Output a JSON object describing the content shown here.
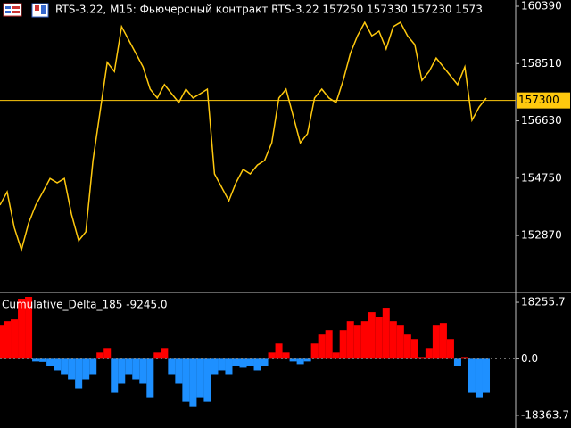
{
  "header": {
    "title": "RTS-3.22, M15:  Фьючерсный контракт RTS-3.22  157250 157330 157230 1573"
  },
  "chart_data": [
    {
      "type": "line",
      "color": "#ffc90e",
      "categories": [
        null,
        null,
        null,
        null,
        null,
        null,
        null,
        null,
        null,
        null,
        null,
        null,
        null,
        null,
        null,
        null,
        null,
        null,
        null,
        null,
        null,
        null,
        null,
        null,
        null,
        null,
        null,
        null,
        null,
        null,
        null,
        null,
        null,
        null,
        null,
        null,
        null,
        null,
        null,
        null,
        null,
        null,
        null,
        null,
        null,
        null,
        null,
        null,
        null,
        null,
        null,
        null,
        null,
        null,
        null,
        null,
        null,
        null,
        null,
        null,
        null,
        null,
        null,
        null,
        null,
        null,
        null,
        null,
        null
      ],
      "values": [
        153870,
        154300,
        153130,
        152400,
        153280,
        153870,
        154300,
        154740,
        154600,
        154740,
        153570,
        152700,
        152990,
        155330,
        156940,
        158550,
        158250,
        159720,
        159280,
        158840,
        158400,
        157670,
        157380,
        157820,
        157520,
        157230,
        157670,
        157380,
        157520,
        157670,
        154890,
        154450,
        154010,
        154600,
        155040,
        154890,
        155180,
        155330,
        155910,
        157380,
        157670,
        156790,
        155910,
        156210,
        157380,
        157670,
        157380,
        157230,
        157960,
        158840,
        159420,
        159860,
        159420,
        159570,
        158990,
        159720,
        159860,
        159420,
        159130,
        157960,
        158250,
        158690,
        158400,
        158110,
        157820,
        158400,
        156650,
        157080,
        157380
      ],
      "ylim": [
        151030,
        160595
      ],
      "yticks": [
        160390,
        158510,
        156630,
        154750,
        152870
      ],
      "current_price": 157300,
      "current_price_color": "#ffc90e"
    },
    {
      "type": "bar",
      "title": "Cumulative_Delta_185 -9245.0",
      "positive_color": "#ff0000",
      "negative_color": "#1e90ff",
      "categories": [
        null,
        null,
        null,
        null,
        null,
        null,
        null,
        null,
        null,
        null,
        null,
        null,
        null,
        null,
        null,
        null,
        null,
        null,
        null,
        null,
        null,
        null,
        null,
        null,
        null,
        null,
        null,
        null,
        null,
        null,
        null,
        null,
        null,
        null,
        null,
        null,
        null,
        null,
        null,
        null,
        null,
        null,
        null,
        null,
        null,
        null,
        null,
        null,
        null,
        null,
        null,
        null,
        null,
        null,
        null,
        null,
        null,
        null,
        null,
        null,
        null,
        null,
        null,
        null,
        null,
        null,
        null,
        null,
        null
      ],
      "values": [
        10720,
        12170,
        12750,
        19420,
        20000,
        -870,
        -1000,
        -2320,
        -3770,
        -5220,
        -6670,
        -9560,
        -6670,
        -5220,
        2030,
        3480,
        -11010,
        -8110,
        -5220,
        -6670,
        -8110,
        -12460,
        2030,
        3480,
        -5220,
        -8110,
        -13910,
        -15360,
        -12460,
        -13910,
        -5220,
        -3770,
        -5220,
        -2320,
        -2900,
        -2320,
        -3770,
        -2320,
        2030,
        4930,
        2030,
        -870,
        -1740,
        -870,
        4930,
        7830,
        9280,
        2030,
        9280,
        12170,
        10720,
        12170,
        15070,
        13620,
        16520,
        12170,
        10720,
        7830,
        6380,
        580,
        3480,
        10720,
        11590,
        6380,
        -2320,
        580,
        -11010,
        -12460,
        -11010
      ],
      "ylim": [
        -21800,
        21150
      ],
      "yticks": [
        18255.7,
        {
          "value": 0,
          "label": "0.0"
        },
        -18363.7
      ]
    }
  ]
}
